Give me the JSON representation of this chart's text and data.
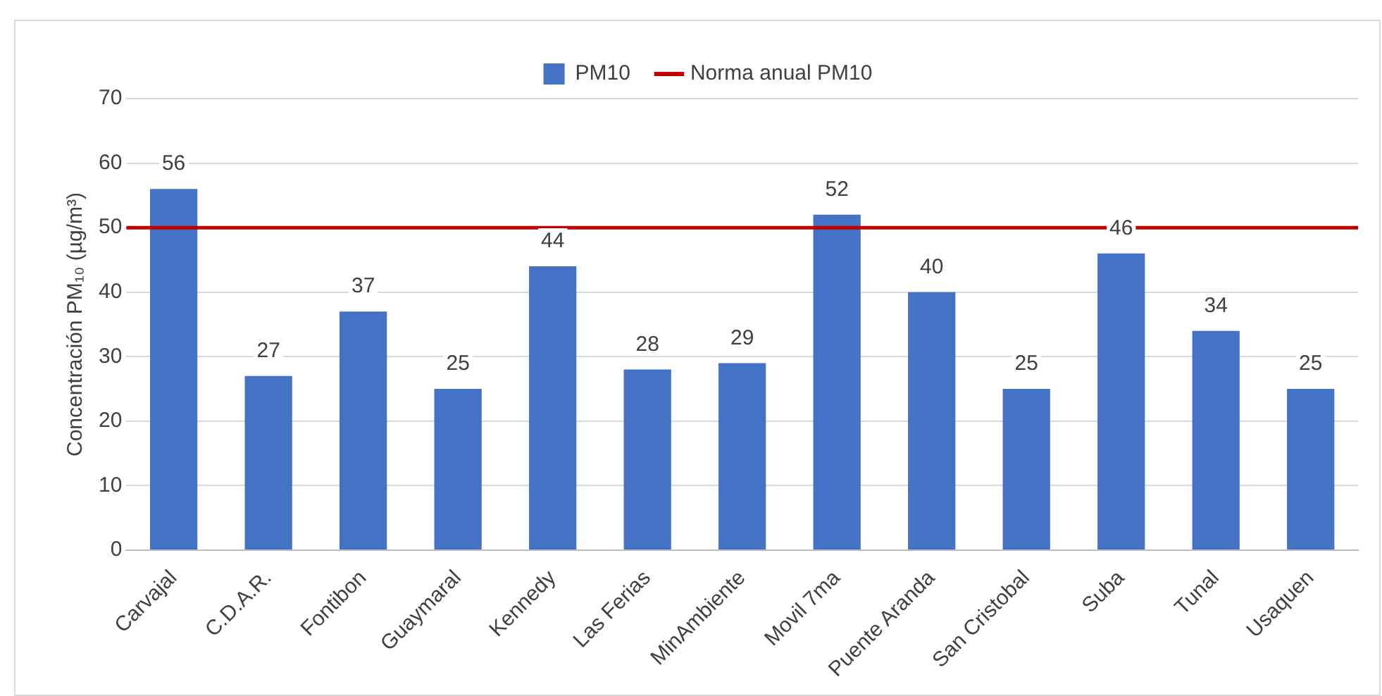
{
  "chart_data": {
    "type": "bar",
    "categories": [
      "Carvajal",
      "C.D.A.R.",
      "Fontibon",
      "Guaymaral",
      "Kennedy",
      "Las Ferias",
      "MinAmbiente",
      "Movil 7ma",
      "Puente Aranda",
      "San Cristobal",
      "Suba",
      "Tunal",
      "Usaquen"
    ],
    "series": [
      {
        "name": "PM10",
        "color": "#4472c4",
        "values": [
          56,
          27,
          37,
          25,
          44,
          28,
          29,
          52,
          40,
          25,
          46,
          34,
          25
        ]
      }
    ],
    "ylabel": "Concentración PM₁₀ (µg/m³)",
    "ylim": [
      0,
      70
    ],
    "yticks": [
      0,
      10,
      20,
      30,
      40,
      50,
      60,
      70
    ],
    "ref_lines": [
      {
        "axis": "y",
        "value": 50,
        "label": "Norma anual PM10",
        "color": "#c00000"
      }
    ],
    "grid": "y",
    "legend": "top",
    "data_labels": true
  }
}
